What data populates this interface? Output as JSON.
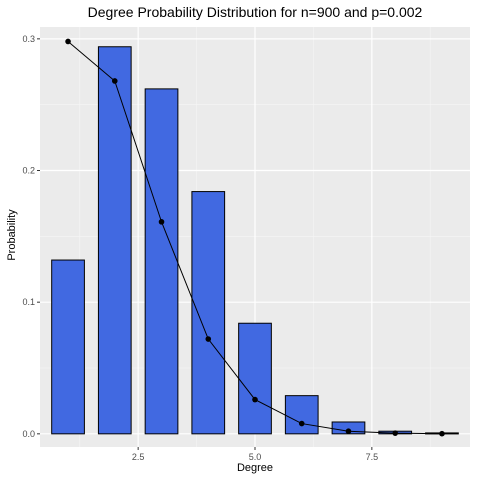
{
  "chart_data": {
    "type": "bar",
    "title": "Degree Probability Distribution for n=900 and p=0.002",
    "xlabel": "Degree",
    "ylabel": "Probability",
    "xlim": [
      0.4,
      9.6
    ],
    "ylim": [
      -0.01,
      0.309
    ],
    "x_ticks": [
      2.5,
      5.0,
      7.5
    ],
    "x_tick_labels": [
      "2.5",
      "5.0",
      "7.5"
    ],
    "y_ticks": [
      0.0,
      0.1,
      0.2,
      0.3
    ],
    "y_tick_labels": [
      "0.0",
      "0.1",
      "0.2",
      "0.3"
    ],
    "grid": true,
    "background": "#ebebeb",
    "series": [
      {
        "type": "bar",
        "color": "#4169e1",
        "x": [
          1,
          2,
          3,
          4,
          5,
          6,
          7,
          8,
          9
        ],
        "values": [
          0.132,
          0.294,
          0.262,
          0.184,
          0.084,
          0.029,
          0.009,
          0.002,
          0.0007
        ]
      },
      {
        "type": "line",
        "color": "#000000",
        "x": [
          1,
          2,
          3,
          4,
          5,
          6,
          7,
          8,
          9
        ],
        "values": [
          0.298,
          0.268,
          0.161,
          0.072,
          0.026,
          0.0078,
          0.002,
          0.0005,
          0.0001
        ]
      }
    ]
  }
}
